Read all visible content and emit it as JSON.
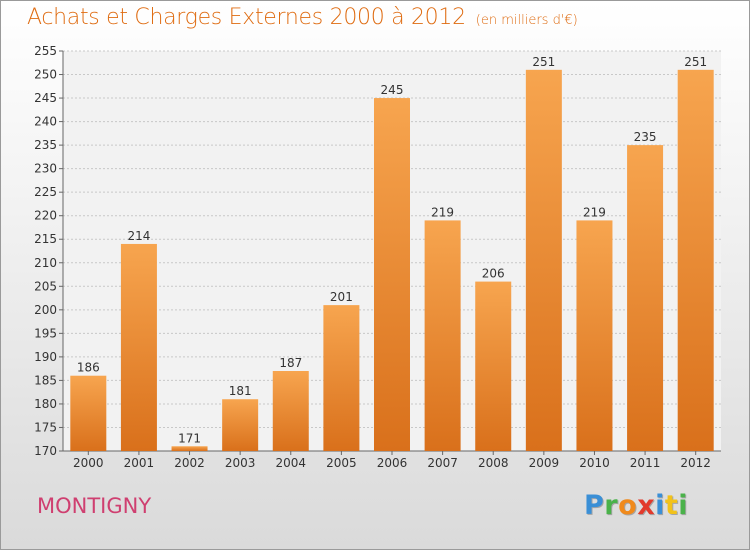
{
  "title": "Achats et Charges Externes 2000 à 2012",
  "unit_label": "(en milliers d'€)",
  "town": "MONTIGNY",
  "brand": {
    "letters": [
      "P",
      "r",
      "o",
      "x",
      "i",
      "t",
      "i"
    ],
    "colors": [
      "#3a8fd6",
      "#4ab24a",
      "#f08a1c",
      "#e23a2c",
      "#3a8fd6",
      "#f2c21a",
      "#4ab24a"
    ]
  },
  "colors": {
    "bar_light": "#f7a54f",
    "bar_dark": "#d9701b",
    "accent": "#df6c12",
    "town": "#cf3f70"
  },
  "chart_data": {
    "type": "bar",
    "title": "Achats et Charges Externes 2000 à 2012",
    "subtitle": "(en milliers d'€)",
    "categories": [
      "2000",
      "2001",
      "2002",
      "2003",
      "2004",
      "2005",
      "2006",
      "2007",
      "2008",
      "2009",
      "2010",
      "2011",
      "2012"
    ],
    "values": [
      186,
      214,
      171,
      181,
      187,
      201,
      245,
      219,
      206,
      251,
      219,
      235,
      251
    ],
    "ylim": [
      170,
      255
    ],
    "yticks": [
      170,
      175,
      180,
      185,
      190,
      195,
      200,
      205,
      210,
      215,
      220,
      225,
      230,
      235,
      240,
      245,
      250,
      255
    ],
    "grid": true,
    "legend": "none"
  }
}
